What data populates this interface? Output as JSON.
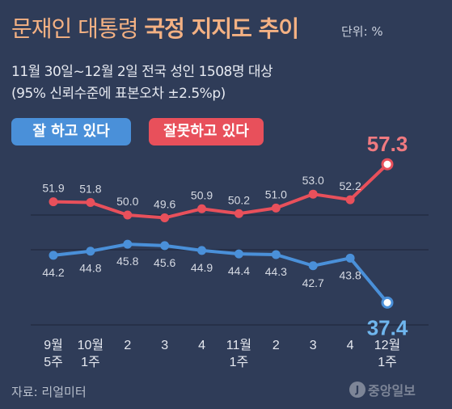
{
  "header": {
    "title_light": "문재인 대통령",
    "title_bold": "국정 지지도 추이",
    "unit": "단위: %",
    "subtitle_line1": "11월 30일~12월 2일 전국 성인 1508명 대상",
    "subtitle_line2": "(95% 신뢰수준에 표본오차 ±2.5%p)"
  },
  "legend": {
    "approve": "잘 하고 있다",
    "disapprove": "잘못하고 있다"
  },
  "footer": {
    "source": "자료: 리얼미터",
    "logo_mark": "J",
    "logo_text": "중앙일보"
  },
  "colors": {
    "background": "#2f3c58",
    "approve": "#4a90d9",
    "disapprove": "#e8505b",
    "approve_last_label": "#6fb6ee",
    "disapprove_last_label": "#f07a80",
    "title": "#f4b183"
  },
  "chart_data": {
    "type": "line",
    "x": [
      [
        "9월",
        "5주"
      ],
      [
        "10월",
        "1주"
      ],
      [
        "2"
      ],
      [
        "3"
      ],
      [
        "4"
      ],
      [
        "11월",
        "1주"
      ],
      [
        "2"
      ],
      [
        "3"
      ],
      [
        "4"
      ],
      [
        "12월",
        "1주"
      ]
    ],
    "series": [
      {
        "name": "잘못하고 있다",
        "values": [
          51.9,
          51.8,
          50.0,
          49.6,
          50.9,
          50.2,
          51.0,
          53.0,
          52.2,
          57.3
        ],
        "labels": [
          "51.9",
          "51.8",
          "50.0",
          "49.6",
          "50.9",
          "50.2",
          "51.0",
          "53.0",
          "52.2",
          "57.3"
        ]
      },
      {
        "name": "잘 하고 있다",
        "values": [
          44.2,
          44.8,
          45.8,
          45.6,
          44.9,
          44.4,
          44.3,
          42.7,
          43.8,
          37.4
        ],
        "labels": [
          "44.2",
          "44.8",
          "45.8",
          "45.6",
          "44.9",
          "44.4",
          "44.3",
          "42.7",
          "43.8",
          "37.4"
        ]
      }
    ],
    "gridlines_at": [
      50,
      45
    ],
    "grid": true
  }
}
